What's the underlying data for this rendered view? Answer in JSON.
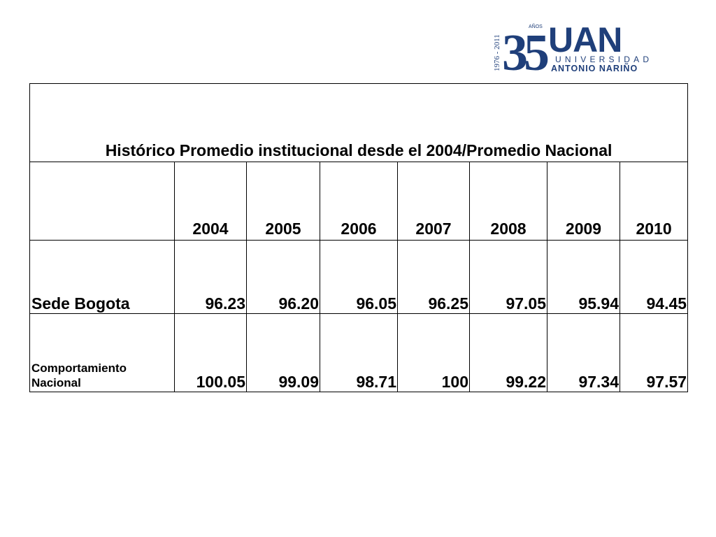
{
  "logo": {
    "years": "1976 - 2011",
    "anniversary_number": "35",
    "anniversary_word": "AÑOS",
    "brand": "UAN",
    "line1": "UNIVERSIDAD",
    "line2": "ANTONIO NARIÑO",
    "colors": {
      "blue": "#1f3f7a",
      "light_blue": "#9fb2cc"
    }
  },
  "table": {
    "title": "Histórico Promedio institucional desde el 2004/Promedio Nacional",
    "corner": "",
    "years": [
      "2004",
      "2005",
      "2006",
      "2007",
      "2008",
      "2009",
      "2010"
    ],
    "rows": [
      {
        "label_lines": [
          "Sede Bogota"
        ],
        "values": [
          "96.23",
          "96.20",
          "96.05",
          "96.25",
          "97.05",
          "95.94",
          "94.45"
        ]
      },
      {
        "label_lines": [
          "Comportamiento",
          "Nacional"
        ],
        "values": [
          "100.05",
          "99.09",
          "98.71",
          "100",
          "99.22",
          "97.34",
          "97.57"
        ]
      }
    ]
  }
}
